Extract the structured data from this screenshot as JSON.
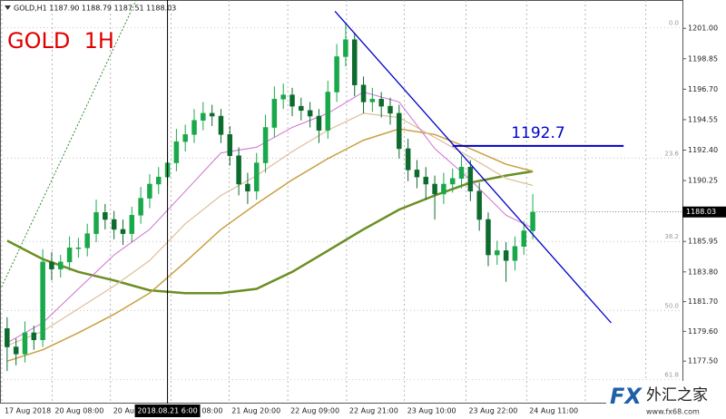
{
  "chart_data": {
    "type": "candlestick",
    "header": "GOLD,H1 1187.90 1188.79 1187.51 1188.03",
    "title": "GOLD  1H",
    "last_price": 1188.03,
    "up_color": "#19a84a",
    "down_color": "#0d6b2e",
    "ylim": [
      1174.5,
      1203
    ],
    "xlim": [
      -0.8,
      75.8
    ],
    "yticks": [
      {
        "value": 1201,
        "label": "1201.00"
      },
      {
        "value": 1198.85,
        "label": "1198.85"
      },
      {
        "value": 1196.7,
        "label": "1196.70"
      },
      {
        "value": 1194.55,
        "label": "1194.55"
      },
      {
        "value": 1192.4,
        "label": "1192.40"
      },
      {
        "value": 1190.25,
        "label": "1190.25"
      },
      {
        "value": 1188.1,
        "label": "1188.10"
      },
      {
        "value": 1185.95,
        "label": "1185.95"
      },
      {
        "value": 1183.8,
        "label": "1183.80"
      },
      {
        "value": 1181.7,
        "label": "1181.70"
      },
      {
        "value": 1179.6,
        "label": "1179.60"
      },
      {
        "value": 1177.5,
        "label": "1177.50"
      }
    ],
    "xticks": [
      {
        "value": -0.6,
        "label": "17 Aug 2018"
      },
      {
        "value": 5.05,
        "label": "20 Aug 08:00"
      },
      {
        "value": 11.6,
        "label": "20 Aug 20:00"
      },
      {
        "value": 18.4,
        "label": "21 Aug 08:00"
      },
      {
        "value": 24.9,
        "label": "21 Aug 20:00"
      },
      {
        "value": 31.5,
        "label": "22 Aug 09:00"
      },
      {
        "value": 38.1,
        "label": "22 Aug 21:00"
      },
      {
        "value": 44.6,
        "label": "23 Aug 10:00"
      },
      {
        "value": 51.5,
        "label": "23 Aug 22:00"
      },
      {
        "value": 58.3,
        "label": "24 Aug 11:00"
      }
    ],
    "xgrid_extra": [
      64.9,
      71.7
    ],
    "ohlc": {
      "open": [
        1179.8,
        1178.5,
        1178,
        1179.5,
        1179,
        1184.5,
        1184,
        1184.5,
        1185.5,
        1185.5,
        1186.5,
        1188,
        1187.5,
        1186.8,
        1186.5,
        1187.8,
        1189,
        1190,
        1190.5,
        1191.5,
        1193,
        1193.5,
        1194.5,
        1195,
        1194.8,
        1193.5,
        1192,
        1190,
        1189.5,
        1191.5,
        1194,
        1196,
        1196.3,
        1195.5,
        1195.2,
        1194.8,
        1193.8,
        1196.5,
        1199,
        1200.2,
        1197,
        1195.8,
        1196,
        1195.5,
        1195,
        1192.5,
        1191,
        1190.5,
        1190,
        1189.3,
        1190,
        1190.4,
        1191.2,
        1189.5,
        1187.5,
        1185,
        1185.3,
        1184.6,
        1185.6,
        1186.7
      ],
      "high": [
        1180.6,
        1179.1,
        1180.3,
        1180.0,
        1185.4,
        1185.2,
        1185.0,
        1186.3,
        1186.2,
        1187.2,
        1188.9,
        1188.6,
        1188.1,
        1187.5,
        1188.4,
        1189.8,
        1190.7,
        1191.2,
        1192.3,
        1193.9,
        1194.2,
        1195.3,
        1195.8,
        1195.6,
        1195.3,
        1194.1,
        1192.6,
        1190.8,
        1192.2,
        1194.9,
        1196.9,
        1197.1,
        1196.8,
        1196.1,
        1195.8,
        1195.3,
        1197.3,
        1199.9,
        1201.4,
        1200.7,
        1197.6,
        1196.8,
        1196.5,
        1196.1,
        1195.6,
        1193.2,
        1191.7,
        1191.2,
        1190.6,
        1190.8,
        1191.1,
        1192.0,
        1191.7,
        1190.1,
        1188.0,
        1186.0,
        1185.9,
        1186.3,
        1187.4,
        1189.3
      ],
      "low": [
        1176.8,
        1177.2,
        1177.4,
        1178.3,
        1178.5,
        1183.2,
        1183.4,
        1183.9,
        1184.8,
        1184.9,
        1185.9,
        1186.8,
        1186.1,
        1185.7,
        1185.9,
        1187.2,
        1188.3,
        1189.3,
        1189.9,
        1190.9,
        1192.3,
        1192.9,
        1193.8,
        1194.1,
        1192.9,
        1191.3,
        1189.2,
        1188.6,
        1188.9,
        1190.8,
        1193.3,
        1195.3,
        1194.8,
        1194.5,
        1194.0,
        1192.9,
        1193.2,
        1195.8,
        1198.3,
        1196.2,
        1195.0,
        1195.1,
        1194.7,
        1194.2,
        1191.8,
        1190.2,
        1189.7,
        1188.9,
        1187.5,
        1188.6,
        1189.4,
        1189.7,
        1188.8,
        1186.7,
        1184.2,
        1184.3,
        1183.1,
        1183.9,
        1185.0,
        1186.1
      ],
      "close": [
        1178.5,
        1178,
        1179.5,
        1179,
        1184.5,
        1184,
        1184.5,
        1185.5,
        1185.5,
        1186.5,
        1188,
        1187.5,
        1186.8,
        1186.5,
        1187.8,
        1189,
        1190,
        1190.5,
        1191.5,
        1193,
        1193.5,
        1194.5,
        1195,
        1194.8,
        1193.5,
        1192,
        1190,
        1189.5,
        1191.5,
        1194,
        1196,
        1196.3,
        1195.5,
        1195.2,
        1194.8,
        1193.8,
        1196.5,
        1199,
        1200.2,
        1197,
        1195.8,
        1196,
        1195.5,
        1195,
        1192.5,
        1191,
        1190.5,
        1190,
        1189.3,
        1190,
        1190.4,
        1191.2,
        1189.5,
        1187.5,
        1185,
        1185.3,
        1184.6,
        1185.6,
        1186.7,
        1188.03
      ]
    },
    "ma": [
      {
        "color": "#6b8e23",
        "width": 2.5,
        "x": [
          0,
          4,
          8,
          12,
          16,
          20,
          24,
          28,
          32,
          36,
          40,
          44,
          48,
          52,
          56,
          59
        ],
        "values": [
          1186,
          1184.7,
          1183.8,
          1183.2,
          1182.5,
          1182.3,
          1182.3,
          1182.6,
          1183.8,
          1185.3,
          1186.8,
          1188.2,
          1189.2,
          1190.1,
          1190.6,
          1190.9
        ]
      },
      {
        "color": "#c8a040",
        "width": 1.5,
        "x": [
          0,
          4,
          8,
          12,
          16,
          20,
          24,
          28,
          32,
          36,
          40,
          44,
          48,
          52,
          56,
          59
        ],
        "values": [
          1177.5,
          1178.3,
          1179.5,
          1180.8,
          1182.3,
          1184.5,
          1186.8,
          1188.6,
          1190.3,
          1191.8,
          1193.1,
          1193.9,
          1193.5,
          1192.5,
          1191.4,
          1190.9
        ]
      },
      {
        "color": "#dcbf98",
        "width": 1.2,
        "x": [
          0,
          4,
          8,
          12,
          16,
          20,
          24,
          28,
          32,
          36,
          40,
          44,
          48,
          52,
          56,
          59
        ],
        "values": [
          1178.6,
          1179.6,
          1181.2,
          1182.8,
          1184.6,
          1187.2,
          1189.2,
          1190.6,
          1192.3,
          1193.8,
          1195,
          1194.7,
          1193.3,
          1191.9,
          1190.4,
          1189.9
        ]
      },
      {
        "color": "#d070d0",
        "width": 1,
        "x": [
          0,
          4,
          8,
          12,
          16,
          20,
          24,
          28,
          32,
          36,
          40,
          44,
          48,
          52,
          56,
          59
        ],
        "values": [
          1178.8,
          1180.2,
          1182.6,
          1185,
          1186.8,
          1189.5,
          1192.2,
          1192.6,
          1194,
          1195,
          1196.5,
          1195.8,
          1192.5,
          1190.3,
          1187.8,
          1186.9
        ]
      }
    ],
    "trendlines": [
      {
        "color": "#0000cc",
        "dash": false,
        "x": [
          36.8,
          67.8
        ],
        "values": [
          1202.2,
          1180.2
        ]
      },
      {
        "color": "#2e8b2e",
        "dash": true,
        "x": [
          -0.8,
          14.5
        ],
        "values": [
          1182.5,
          1203
        ]
      }
    ],
    "hline": {
      "color": "#0000cc",
      "value": 1192.7,
      "x": [
        50,
        69.2
      ]
    },
    "crosshair": {
      "x": 18,
      "label": "2018.08.21 6:00"
    },
    "fib_levels": [
      {
        "label": "0.0",
        "value": 1201.06
      },
      {
        "label": "23.6",
        "value": 1191.84
      },
      {
        "label": "38.2",
        "value": 1185.95
      },
      {
        "label": "50.0",
        "value": 1181.08
      },
      {
        "label": "61.8",
        "value": 1176.2
      }
    ]
  },
  "watermark": {
    "brand": "FX",
    "name": "外汇之家",
    "url": "www.fx68.com"
  }
}
